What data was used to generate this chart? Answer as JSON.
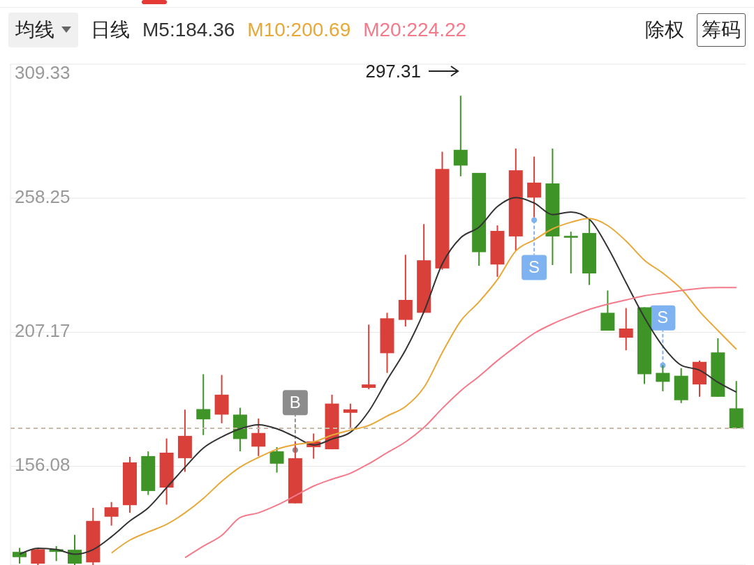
{
  "chart_data": {
    "type": "candlestick",
    "categories": [
      null,
      null,
      null,
      null,
      null,
      null,
      null,
      null,
      null,
      null,
      null,
      null,
      null,
      null,
      null,
      null,
      null,
      null,
      null,
      null,
      null,
      null,
      null,
      null,
      null,
      null,
      null,
      null,
      null,
      null,
      null,
      null,
      null,
      null,
      null,
      null,
      null,
      null,
      null,
      null
    ],
    "ohlc": [
      [
        123.5,
        125,
        119,
        121.5
      ],
      [
        119,
        125,
        118.5,
        124.5
      ],
      [
        124.5,
        125.7,
        120,
        123.5
      ],
      [
        124.3,
        130,
        118.5,
        119
      ],
      [
        119.5,
        140.3,
        118.5,
        135.3
      ],
      [
        136.9,
        142.5,
        133.5,
        140.5
      ],
      [
        141.3,
        159.7,
        138.4,
        157.6
      ],
      [
        160,
        161.8,
        145.2,
        146.7
      ],
      [
        148,
        166.7,
        141.5,
        161.3
      ],
      [
        159.2,
        177.7,
        154,
        167.7
      ],
      [
        177.9,
        191.2,
        168,
        174
      ],
      [
        175.8,
        190.9,
        172.5,
        183.4
      ],
      [
        175.8,
        178.4,
        161.8,
        166.5
      ],
      [
        163.6,
        174.3,
        160,
        168.8
      ],
      [
        161.8,
        163.4,
        153.7,
        157.1
      ],
      [
        142,
        165.4,
        142,
        159.2
      ],
      [
        163.4,
        168.6,
        159,
        165.6
      ],
      [
        162.6,
        183.4,
        162.6,
        180
      ],
      [
        176.5,
        180,
        170.9,
        177.8
      ],
      [
        186,
        210.1,
        185.5,
        187.3
      ],
      [
        199.2,
        214.6,
        191.7,
        212.5
      ],
      [
        211.9,
        236.7,
        209.4,
        219.5
      ],
      [
        214.6,
        248.4,
        214.6,
        234.6
      ],
      [
        231.5,
        276,
        231,
        269.4
      ],
      [
        276.7,
        297.31,
        266.6,
        270.7
      ],
      [
        267.9,
        267.9,
        232.5,
        237.7
      ],
      [
        233,
        247.9,
        228.3,
        245.8
      ],
      [
        243.7,
        277.2,
        238.2,
        268.9
      ],
      [
        258.5,
        274.1,
        251,
        264.2
      ],
      [
        263.9,
        277.2,
        232.8,
        243.7
      ],
      [
        243.9,
        245.5,
        229.6,
        243.2
      ],
      [
        245,
        250.2,
        225.2,
        229.6
      ],
      [
        214.6,
        223.1,
        207.8,
        207.8
      ],
      [
        205.1,
        216.4,
        200.3,
        208.6
      ],
      [
        216.7,
        216.7,
        187.5,
        191.2
      ],
      [
        191.7,
        194.6,
        184.7,
        188.3
      ],
      [
        190.6,
        193.5,
        180.2,
        181.3
      ],
      [
        187.3,
        196.4,
        182.6,
        195.9
      ],
      [
        199.5,
        204.9,
        182.6,
        182.6
      ],
      [
        178.2,
        188.6,
        170.4,
        170.6
      ]
    ],
    "colors": [
      "#3f9428",
      "#d9403a",
      "#3f9428",
      "#3f9428",
      "#d9403a",
      "#d9403a",
      "#d9403a",
      "#3f9428",
      "#d9403a",
      "#d9403a",
      "#3f9428",
      "#d9403a",
      "#3f9428",
      "#d9403a",
      "#3f9428",
      "#d9403a",
      "#d9403a",
      "#d9403a",
      "#d9403a",
      "#d9403a",
      "#d9403a",
      "#d9403a",
      "#d9403a",
      "#d9403a",
      "#3f9428",
      "#3f9428",
      "#d9403a",
      "#d9403a",
      "#d9403a",
      "#3f9428",
      "#3f9428",
      "#3f9428",
      "#3f9428",
      "#d9403a",
      "#3f9428",
      "#3f9428",
      "#3f9428",
      "#d9403a",
      "#3f9428",
      "#3f9428"
    ],
    "series": [
      {
        "type": "line",
        "name": "M5:184.36",
        "color": "#333333",
        "values": [
          122.6,
          124.9,
          124.4,
          122.6,
          124.4,
          129.3,
          135.3,
          140.3,
          148.0,
          155.8,
          163.1,
          167.3,
          170.4,
          171.9,
          170.4,
          167.3,
          164.2,
          166.5,
          169.1,
          177.1,
          189.1,
          200.5,
          215.1,
          233.3,
          243.2,
          247.3,
          255.1,
          258.5,
          256.4,
          252.0,
          253.0,
          250.2,
          239.5,
          226.0,
          212.7,
          201.8,
          194.6,
          192.7,
          188.1,
          184.36
        ]
      },
      {
        "type": "line",
        "name": "M10:200.69",
        "color": "#e8a838",
        "values": [
          null,
          null,
          null,
          null,
          null,
          123.1,
          128.0,
          131.1,
          134.0,
          138.4,
          143.9,
          150.4,
          155.8,
          159.5,
          162.6,
          164.4,
          165.4,
          168.0,
          169.9,
          171.7,
          175.3,
          178.9,
          186.2,
          199.5,
          211.5,
          218.8,
          227.3,
          238.2,
          242.4,
          246.6,
          249.1,
          250.5,
          247.8,
          241.9,
          234.6,
          229.7,
          223.7,
          215.1,
          207.8,
          200.69
        ]
      },
      {
        "type": "line",
        "name": "M20:224.22",
        "color": "#f47a8a",
        "values": [
          null,
          null,
          null,
          null,
          null,
          null,
          null,
          null,
          null,
          121.3,
          125.7,
          129.8,
          136.6,
          138.4,
          141.3,
          144.9,
          148.6,
          151.2,
          153.5,
          157.1,
          161.3,
          165.4,
          170.9,
          178.2,
          184.9,
          190.4,
          196.4,
          201.8,
          206.8,
          210.4,
          213.3,
          215.9,
          217.9,
          219.5,
          221.1,
          222.1,
          223.1,
          223.9,
          224.2,
          224.22
        ]
      },
      {
        "type": "scatter",
        "values": [
          null,
          null,
          null,
          null,
          null,
          null,
          null,
          null,
          null,
          null,
          null,
          null,
          null,
          null,
          null,
          162.3,
          null,
          null,
          null,
          null,
          null,
          null,
          null,
          null,
          null,
          null,
          null,
          null,
          249.9,
          null,
          null,
          null,
          null,
          null,
          null,
          194.6,
          null,
          null,
          null,
          null
        ],
        "value_labels": [
          null,
          null,
          null,
          null,
          null,
          null,
          null,
          null,
          null,
          null,
          null,
          null,
          null,
          null,
          null,
          "B",
          null,
          null,
          null,
          null,
          null,
          null,
          null,
          null,
          null,
          null,
          null,
          null,
          "S",
          null,
          null,
          null,
          null,
          null,
          null,
          "S",
          null,
          null,
          null,
          null
        ],
        "colors": [
          null,
          null,
          null,
          null,
          null,
          null,
          null,
          null,
          null,
          null,
          null,
          null,
          null,
          null,
          null,
          "#8c8c8c",
          null,
          null,
          null,
          null,
          null,
          null,
          null,
          null,
          null,
          null,
          null,
          null,
          "#7fb2f0",
          null,
          null,
          null,
          null,
          null,
          null,
          "#7fb2f0",
          null,
          null,
          null,
          null
        ]
      }
    ],
    "ylim": [
      118.5,
      309.33
    ],
    "yticks": [
      156.08,
      207.17,
      258.25,
      309.33
    ],
    "grid": "y",
    "tick_labels": "y",
    "ref_lines": [
      {
        "axis": "y",
        "value": 170.6,
        "color": "#c9b9a6",
        "line_style": "dashed"
      }
    ],
    "annotations": [
      "均线",
      "日线",
      "除权",
      "筹码",
      "297.31"
    ]
  }
}
